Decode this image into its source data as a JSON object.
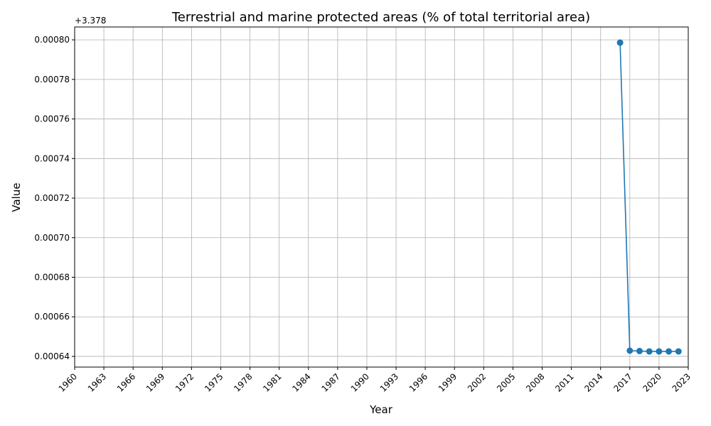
{
  "chart_data": {
    "type": "line",
    "title": "Terrestrial and marine protected areas (% of total territorial area)",
    "x_label": "Year",
    "y_label": "Value",
    "y_offset_label": "+3.378",
    "x": [
      2016,
      2017,
      2018,
      2019,
      2020,
      2021,
      2022
    ],
    "values": [
      0.0007986,
      0.0006429,
      0.0006427,
      0.0006425,
      0.0006425,
      0.0006425,
      0.0006425
    ],
    "color": "#1f77b4",
    "xlim": [
      1960,
      2023
    ],
    "xticks": [
      1960,
      1963,
      1966,
      1969,
      1972,
      1975,
      1978,
      1981,
      1984,
      1987,
      1990,
      1993,
      1996,
      1999,
      2002,
      2005,
      2008,
      2011,
      2014,
      2017,
      2020,
      2023
    ],
    "ylim": [
      0.0006346,
      0.0008065
    ],
    "yticks": [
      0.00064,
      0.00066,
      0.00068,
      {
        "value": 0.0007,
        "label": "0.00070"
      },
      0.00072,
      0.00074,
      0.00076,
      0.00078,
      {
        "value": 0.0008,
        "label": "0.00080"
      }
    ],
    "grid": true
  }
}
